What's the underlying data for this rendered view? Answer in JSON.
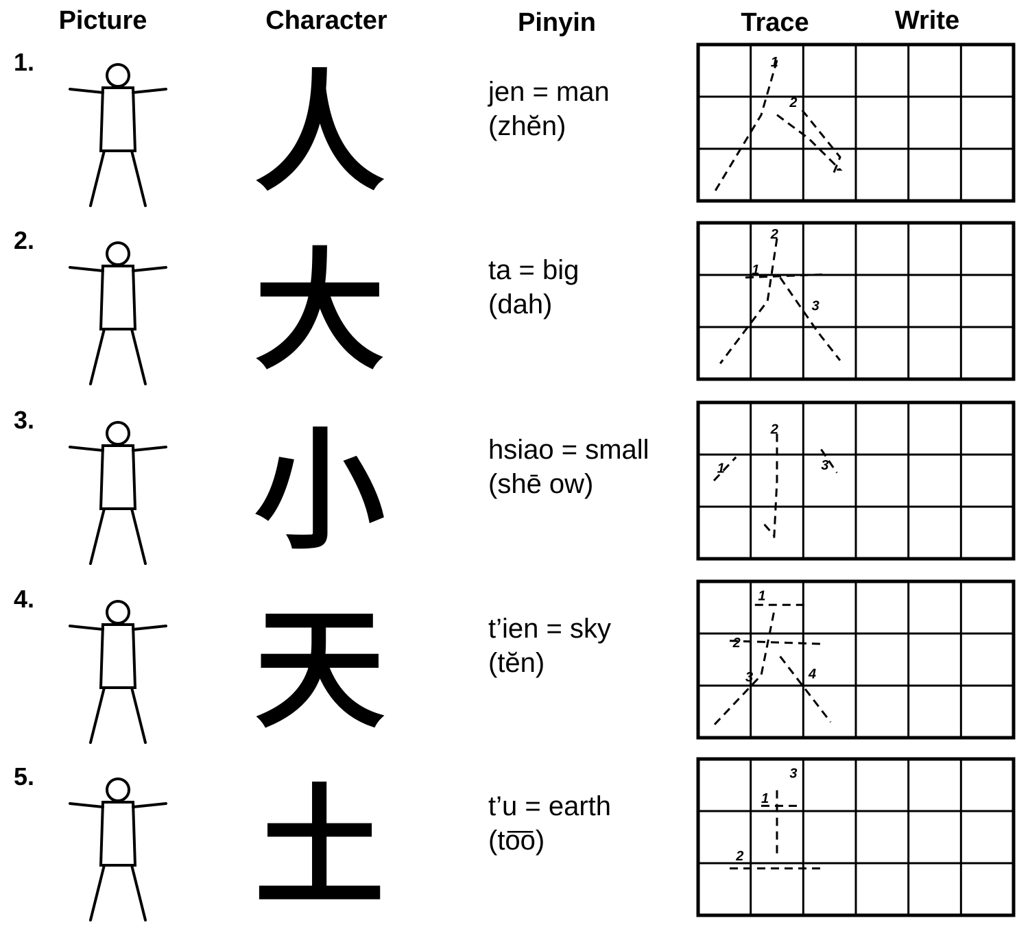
{
  "header": {
    "picture": "Picture",
    "character": "Character",
    "pinyin": "Pinyin",
    "trace": "Trace",
    "write": "Write"
  },
  "rows": [
    {
      "number": "1.",
      "character": "人",
      "pinyin": "jen = man",
      "pronunciation": "(zhĕn)",
      "stroke_numbers": [
        "1",
        "2"
      ]
    },
    {
      "number": "2.",
      "character": "大",
      "pinyin": "ta = big",
      "pronunciation": "(dah)",
      "stroke_numbers": [
        "1",
        "2",
        "3"
      ]
    },
    {
      "number": "3.",
      "character": "小",
      "pinyin": "hsiao = small",
      "pronunciation": "(shē ow)",
      "stroke_numbers": [
        "1",
        "2",
        "3"
      ]
    },
    {
      "number": "4.",
      "character": "天",
      "pinyin": "t’ien = sky",
      "pronunciation": "(tĕn)",
      "stroke_numbers": [
        "1",
        "2",
        "3",
        "4"
      ]
    },
    {
      "number": "5.",
      "character": "土",
      "pinyin": "t’u = earth",
      "pronunciation": "(to͞o)",
      "stroke_numbers": [
        "1",
        "2",
        "3"
      ]
    }
  ]
}
